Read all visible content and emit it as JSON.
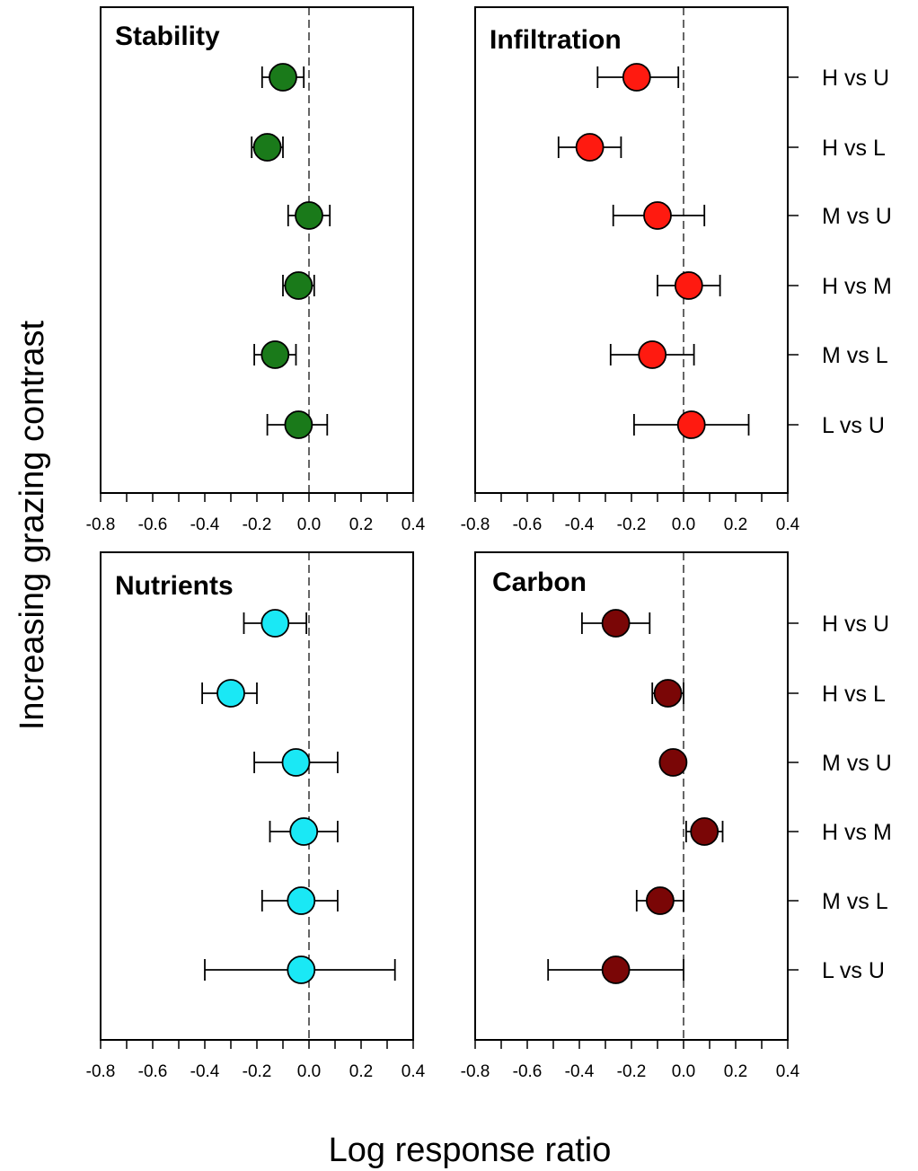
{
  "chart_data": {
    "type": "scatter",
    "xlabel": "Log response ratio",
    "ylabel": "Increasing grazing contrast",
    "xlim": [
      -0.8,
      0.4
    ],
    "xticks": [
      "-0.8",
      "-0.6",
      "-0.4",
      "-0.2",
      "0.0",
      "0.2",
      "0.4"
    ],
    "categories": [
      "H vs U",
      "H vs L",
      "M vs U",
      "H vs M",
      "M vs L",
      "L vs U"
    ],
    "reference_line": 0,
    "panels": [
      {
        "title": "Stability",
        "color": "#1a7a1a",
        "points": [
          {
            "category": "H vs U",
            "value": -0.1,
            "lower": -0.18,
            "upper": -0.02
          },
          {
            "category": "H vs L",
            "value": -0.16,
            "lower": -0.22,
            "upper": -0.1
          },
          {
            "category": "M vs U",
            "value": 0.0,
            "lower": -0.08,
            "upper": 0.08
          },
          {
            "category": "H vs M",
            "value": -0.04,
            "lower": -0.1,
            "upper": 0.02
          },
          {
            "category": "M vs L",
            "value": -0.13,
            "lower": -0.21,
            "upper": -0.05
          },
          {
            "category": "L vs U",
            "value": -0.04,
            "lower": -0.16,
            "upper": 0.07
          }
        ]
      },
      {
        "title": "Infiltration",
        "color": "#ff1a10",
        "points": [
          {
            "category": "H vs U",
            "value": -0.18,
            "lower": -0.33,
            "upper": -0.02
          },
          {
            "category": "H vs L",
            "value": -0.36,
            "lower": -0.48,
            "upper": -0.24
          },
          {
            "category": "M vs U",
            "value": -0.1,
            "lower": -0.27,
            "upper": 0.08
          },
          {
            "category": "H vs M",
            "value": 0.02,
            "lower": -0.1,
            "upper": 0.14
          },
          {
            "category": "M vs L",
            "value": -0.12,
            "lower": -0.28,
            "upper": 0.04
          },
          {
            "category": "L vs U",
            "value": 0.03,
            "lower": -0.19,
            "upper": 0.25
          }
        ]
      },
      {
        "title": "Nutrients",
        "color": "#1ae8f5",
        "points": [
          {
            "category": "H vs U",
            "value": -0.13,
            "lower": -0.25,
            "upper": -0.01
          },
          {
            "category": "H vs L",
            "value": -0.3,
            "lower": -0.41,
            "upper": -0.2
          },
          {
            "category": "M vs U",
            "value": -0.05,
            "lower": -0.21,
            "upper": 0.11
          },
          {
            "category": "H vs M",
            "value": -0.02,
            "lower": -0.15,
            "upper": 0.11
          },
          {
            "category": "M vs L",
            "value": -0.03,
            "lower": -0.18,
            "upper": 0.11
          },
          {
            "category": "L vs U",
            "value": -0.03,
            "lower": -0.4,
            "upper": 0.33
          }
        ]
      },
      {
        "title": "Carbon",
        "color": "#7a0606",
        "points": [
          {
            "category": "H vs U",
            "value": -0.26,
            "lower": -0.39,
            "upper": -0.13
          },
          {
            "category": "H vs L",
            "value": -0.06,
            "lower": -0.12,
            "upper": 0.0
          },
          {
            "category": "M vs U",
            "value": -0.04,
            "lower": -0.04,
            "upper": -0.04
          },
          {
            "category": "H vs M",
            "value": 0.08,
            "lower": 0.01,
            "upper": 0.15
          },
          {
            "category": "M vs L",
            "value": -0.09,
            "lower": -0.18,
            "upper": 0.0
          },
          {
            "category": "L vs U",
            "value": -0.26,
            "lower": -0.52,
            "upper": 0.0
          }
        ]
      }
    ]
  }
}
